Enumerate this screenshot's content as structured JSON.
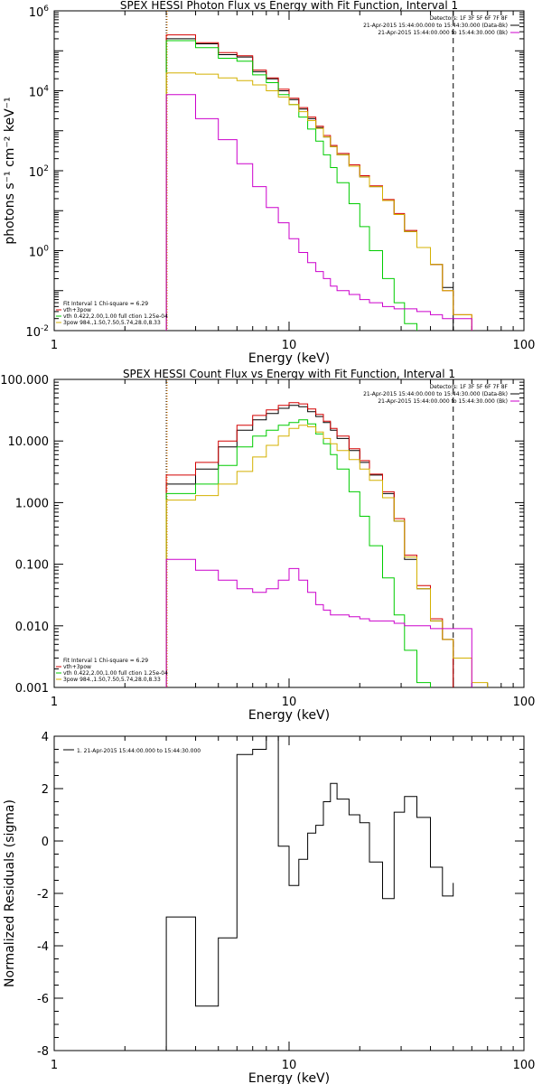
{
  "chart_data": [
    {
      "type": "line",
      "title": "SPEX HESSI Photon Flux vs Energy with Fit Function, Interval 1",
      "xlabel": "Energy (keV)",
      "ylabel": "photons s⁻¹ cm⁻² keV⁻¹",
      "xscale": "log",
      "yscale": "log",
      "xlim": [
        1,
        100
      ],
      "ylim": [
        0.01,
        1000000
      ],
      "x_ticks": [
        {
          "v": 1,
          "label": "1"
        },
        {
          "v": 10,
          "label": "10"
        },
        {
          "v": 100,
          "label": "100"
        }
      ],
      "y_ticks": [
        {
          "v": 0.01,
          "b": "10",
          "e": "-2"
        },
        {
          "v": 1,
          "b": "10",
          "e": "0"
        },
        {
          "v": 100,
          "b": "10",
          "e": "2"
        },
        {
          "v": 10000,
          "b": "10",
          "e": "4"
        },
        {
          "v": 1000000,
          "b": "10",
          "e": "6"
        }
      ],
      "vlines": [
        {
          "x": 3,
          "style": "dotted",
          "color": "#000000"
        },
        {
          "x": 3,
          "style": "dotted",
          "color": "#ff8c00"
        },
        {
          "x": 50,
          "style": "dashed",
          "color": "#000000"
        }
      ],
      "legend_top": [
        "Detectors: 1F 3F 5F 6F 7F 8F",
        "21-Apr-2015 15:44:00.000 to 15:44:30.000 (Data-Bk)",
        "21-Apr-2015 15:44:00.000 to 15:44:30.000 (Bk)"
      ],
      "legend_top_colors": [
        "#000000",
        "#000000",
        "#cc00cc"
      ],
      "legend_bottom": [
        "Fit Interval 1    Chi-square = 6.29",
        "vth+3pow",
        "vth 0.422,2.00,1.00   full ction 1.25e-04",
        "3pow 984.,1.50,7.50,5.74,28.0,8.33"
      ],
      "legend_bottom_colors": [
        "#000000",
        "#d40000",
        "#00cc00",
        "#d4b000"
      ],
      "edges": [
        3,
        3.5,
        4,
        5,
        6,
        7,
        8,
        9,
        10,
        11,
        12,
        13,
        14,
        15,
        16,
        18,
        20,
        22,
        25,
        28,
        31,
        35,
        40,
        45,
        50,
        60
      ],
      "series": [
        {
          "name": "Data-Bk",
          "color": "#000000",
          "values": [
            200000,
            200000,
            150000,
            80000,
            70000,
            30000,
            20000,
            10000,
            6000,
            3500,
            2000,
            1200,
            700,
            400,
            250,
            130,
            70,
            40,
            18,
            8,
            3,
            1.2,
            0.45,
            0.12,
            null
          ]
        },
        {
          "name": "vth+3pow",
          "color": "#d40000",
          "values": [
            250000,
            250000,
            160000,
            90000,
            75000,
            33000,
            21000,
            11000,
            6500,
            3800,
            2200,
            1300,
            760,
            430,
            270,
            140,
            75,
            42,
            19,
            8.5,
            3.2,
            1.2,
            0.45,
            0.1,
            0.025
          ]
        },
        {
          "name": "vth",
          "color": "#00cc00",
          "values": [
            180000,
            180000,
            120000,
            65000,
            55000,
            25000,
            16000,
            8000,
            4500,
            2200,
            1100,
            550,
            250,
            120,
            50,
            15,
            4,
            1,
            0.2,
            0.05,
            0.015,
            null,
            null,
            null,
            null
          ]
        },
        {
          "name": "3pow",
          "color": "#d4b000",
          "values": [
            28000,
            28000,
            26000,
            21000,
            18000,
            14000,
            10000,
            7000,
            4500,
            3000,
            1800,
            1150,
            700,
            400,
            250,
            130,
            70,
            40,
            18,
            8,
            3,
            1.2,
            0.45,
            0.1,
            0.025
          ]
        },
        {
          "name": "Bk",
          "color": "#cc00cc",
          "values": [
            8000,
            8000,
            2000,
            600,
            150,
            40,
            12,
            5,
            2,
            0.9,
            0.5,
            0.3,
            0.2,
            0.13,
            0.1,
            0.08,
            0.06,
            0.05,
            0.04,
            0.035,
            0.035,
            0.03,
            0.025,
            0.02,
            0.02
          ]
        }
      ]
    },
    {
      "type": "line",
      "title": "SPEX HESSI Count Flux vs Energy with Fit Function, Interval 1",
      "xlabel": "Energy (keV)",
      "ylabel": "",
      "xscale": "log",
      "yscale": "log",
      "xlim": [
        1,
        100
      ],
      "ylim": [
        0.001,
        100
      ],
      "x_ticks": [
        {
          "v": 1,
          "label": "1"
        },
        {
          "v": 10,
          "label": "10"
        },
        {
          "v": 100,
          "label": "100"
        }
      ],
      "y_ticks": [
        {
          "v": 0.001,
          "label": "0.001"
        },
        {
          "v": 0.01,
          "label": "0.010"
        },
        {
          "v": 0.1,
          "label": "0.100"
        },
        {
          "v": 1,
          "label": "1.000"
        },
        {
          "v": 10,
          "label": "10.000"
        },
        {
          "v": 100,
          "label": "100.000"
        }
      ],
      "vlines": [
        {
          "x": 3,
          "style": "dotted",
          "color": "#000000"
        },
        {
          "x": 3,
          "style": "dotted",
          "color": "#ff8c00"
        },
        {
          "x": 50,
          "style": "dashed",
          "color": "#000000"
        }
      ],
      "legend_top": [
        "Detectors: 1F 3F 5F 6F 7F 8F",
        "21-Apr-2015 15:44:00.000 to 15:44:30.000 (Data-Bk)",
        "21-Apr-2015 15:44:00.000 to 15:44:30.000 (Bk)"
      ],
      "legend_top_colors": [
        "#000000",
        "#000000",
        "#cc00cc"
      ],
      "legend_bottom": [
        "Fit Interval 1    Chi-square = 6.29",
        "vth+3pow",
        "vth 0.422,2.00,1.00   full ction 1.25e-04",
        "3pow 984.,1.50,7.50,5.74,28.0,8.33"
      ],
      "legend_bottom_colors": [
        "#000000",
        "#d40000",
        "#00cc00",
        "#d4b000"
      ],
      "edges": [
        3,
        3.5,
        4,
        5,
        6,
        7,
        8,
        9,
        10,
        11,
        12,
        13,
        14,
        15,
        16,
        18,
        20,
        22,
        25,
        28,
        31,
        35,
        40,
        45,
        50,
        60,
        70
      ],
      "series": [
        {
          "name": "Data-Bk",
          "color": "#000000",
          "values": [
            2.0,
            2.0,
            3.5,
            8.0,
            15,
            22,
            28,
            34,
            38,
            36,
            30,
            25,
            20,
            15,
            11,
            7,
            4.5,
            2.8,
            1.4,
            0.5,
            0.12,
            0.04,
            0.012,
            0.006,
            null,
            null
          ]
        },
        {
          "name": "vth+3pow",
          "color": "#d40000",
          "values": [
            2.8,
            2.8,
            4.5,
            10,
            18,
            26,
            32,
            38,
            42,
            40,
            33,
            27,
            21,
            16,
            12,
            7.5,
            4.8,
            2.9,
            1.5,
            0.55,
            0.14,
            0.045,
            0.013,
            0.006,
            null,
            null
          ]
        },
        {
          "name": "vth",
          "color": "#00cc00",
          "values": [
            1.4,
            1.4,
            2.0,
            4.0,
            8.0,
            12,
            15,
            18,
            20,
            22,
            19,
            13,
            9,
            6,
            3.5,
            1.5,
            0.6,
            0.2,
            0.06,
            0.015,
            0.004,
            0.0012,
            null,
            null,
            null,
            null
          ]
        },
        {
          "name": "3pow",
          "color": "#d4b000",
          "values": [
            1.1,
            1.1,
            1.3,
            2.0,
            3.2,
            5.5,
            8.5,
            12,
            16,
            18,
            17,
            14,
            11,
            9,
            7,
            5,
            3.5,
            2.3,
            1.2,
            0.5,
            0.13,
            0.04,
            0.012,
            0.006,
            0.003,
            0.0012
          ]
        },
        {
          "name": "Bk",
          "color": "#cc00cc",
          "values": [
            0.12,
            0.12,
            0.08,
            0.055,
            0.04,
            0.035,
            0.04,
            0.055,
            0.085,
            0.055,
            0.035,
            0.022,
            0.018,
            0.015,
            0.015,
            0.014,
            0.013,
            0.012,
            0.012,
            0.011,
            0.01,
            0.01,
            0.009,
            0.009,
            0.009,
            null
          ]
        }
      ]
    },
    {
      "type": "line",
      "title": "",
      "xlabel": "Energy (keV)",
      "ylabel": "Normalized Residuals (sigma)",
      "xscale": "log",
      "yscale": "linear",
      "xlim": [
        1,
        100
      ],
      "ylim": [
        -8,
        4
      ],
      "x_ticks": [
        {
          "v": 1,
          "label": "1"
        },
        {
          "v": 10,
          "label": "10"
        },
        {
          "v": 100,
          "label": "100"
        }
      ],
      "y_ticks": [
        {
          "v": -8,
          "label": "-8"
        },
        {
          "v": -6,
          "label": "-6"
        },
        {
          "v": -4,
          "label": "-4"
        },
        {
          "v": -2,
          "label": "-2"
        },
        {
          "v": 0,
          "label": "0"
        },
        {
          "v": 2,
          "label": "2"
        },
        {
          "v": 4,
          "label": "4"
        }
      ],
      "vlines": [],
      "legend_top": [
        "1. 21-Apr-2015 15:44:00.000 to 15:44:30.000"
      ],
      "legend_top_colors": [
        "#000000"
      ],
      "legend_bottom": [],
      "legend_bottom_colors": [],
      "edges": [
        3,
        4,
        5,
        6,
        7,
        8,
        9,
        10,
        11,
        12,
        13,
        14,
        15,
        16,
        18,
        20,
        22,
        25,
        28,
        31,
        35,
        40,
        45,
        50
      ],
      "series": [
        {
          "name": "1. 21-Apr-2015 15:44:00.000 to 15:44:30.000",
          "color": "#000000",
          "values": [
            -2.9,
            -6.3,
            -3.7,
            3.3,
            3.5,
            4.1,
            -0.2,
            -1.7,
            -0.7,
            0.3,
            0.6,
            1.5,
            2.2,
            1.6,
            1.0,
            0.7,
            -0.8,
            -2.2,
            1.1,
            1.7,
            0.9,
            -1.0,
            -2.1,
            -1.6
          ]
        }
      ]
    }
  ]
}
